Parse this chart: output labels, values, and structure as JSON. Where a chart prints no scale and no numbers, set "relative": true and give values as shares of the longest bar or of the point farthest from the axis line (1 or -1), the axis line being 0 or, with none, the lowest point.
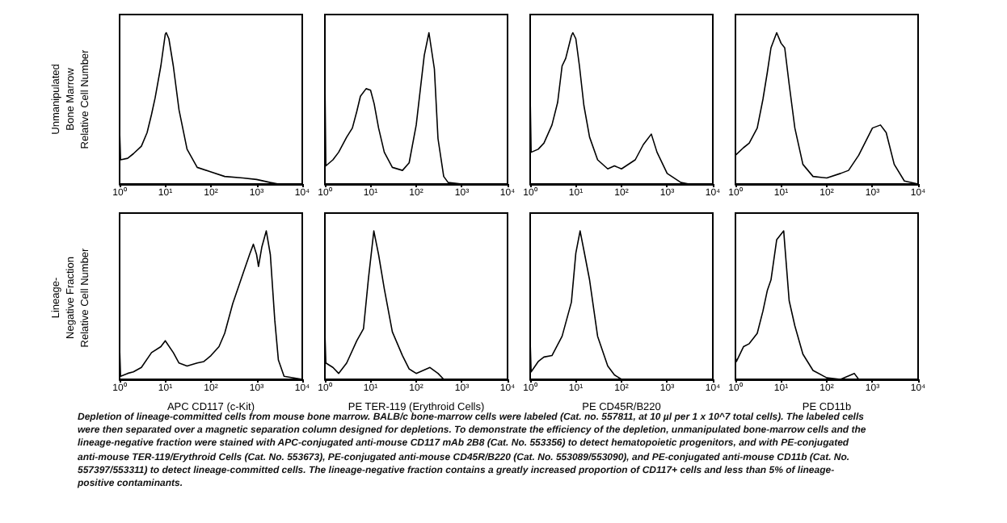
{
  "chart_data": [
    {
      "type": "line",
      "relative": true,
      "log": "x",
      "color": "#000000",
      "marker": "none",
      "ylabel": "Unmanipulated\nBone Marrow\nRelative Cell Number",
      "xlim": [
        1,
        10000
      ],
      "xticks": [
        {
          "value": 1,
          "label": "10⁰"
        },
        {
          "value": 10,
          "label": "10¹"
        },
        {
          "value": 100,
          "label": "10²"
        },
        {
          "value": 1000,
          "label": "10³"
        },
        {
          "value": 10000,
          "label": "10⁴"
        }
      ],
      "x": [
        1,
        1,
        1.05,
        1.5,
        2,
        3,
        4,
        5,
        6,
        8,
        10,
        10.5,
        12,
        15,
        20,
        30,
        50,
        100,
        200,
        500,
        1000,
        2000,
        3000,
        10000
      ],
      "values": [
        0,
        0.36,
        0.16,
        0.17,
        0.2,
        0.25,
        0.34,
        0.46,
        0.57,
        0.78,
        0.99,
        1,
        0.96,
        0.78,
        0.49,
        0.23,
        0.11,
        0.08,
        0.05,
        0.04,
        0.03,
        0.01,
        0,
        0
      ],
      "annotations": [
        "Depletion of lineage-committed cells from mouse bone marrow.",
        "BALB/c bone-marrow cells were labeled (Cat. no. 557811, at 10 µl per 1 x 10^7 total cells). The labeled cells were then separated over a magnetic separation column designed for depletions. To demonstrate the efficiency of the depletion, unmanipulated bone-marrow cells and the lineage-negative fraction were stained with APC-conjugated anti-mouse CD117 mAb 2B8 (Cat. No. 553356) to detect hematopoietic progenitors, and with PE-conjugated anti-mouse TER-119/Erythroid Cells (Cat. No. 553673), PE-conjugated anti-mouse CD45R/B220 (Cat. No. 553089/553090), and PE-conjugated anti-mouse CD11b (Cat. No. 557397/553311) to detect lineage-committed cells. The lineage-negative fraction contains a greatly increased proportion of CD117+ cells and less than 5% of lineage-positive contaminants."
      ]
    },
    {
      "type": "line",
      "relative": true,
      "log": "x",
      "color": "#000000",
      "marker": "none",
      "xlim": [
        1,
        10000
      ],
      "xticks": [
        {
          "value": 1,
          "label": "10⁰"
        },
        {
          "value": 10,
          "label": "10¹"
        },
        {
          "value": 100,
          "label": "10²"
        },
        {
          "value": 1000,
          "label": "10³"
        },
        {
          "value": 10000,
          "label": "10⁴"
        }
      ],
      "x": [
        1,
        1,
        1.05,
        1.5,
        2,
        3,
        4,
        5,
        6,
        8,
        10,
        12,
        15,
        20,
        30,
        50,
        70,
        100,
        150,
        190,
        250,
        300,
        400,
        500,
        1000,
        10000
      ],
      "values": [
        0,
        0.71,
        0.12,
        0.16,
        0.21,
        0.31,
        0.37,
        0.48,
        0.58,
        0.63,
        0.62,
        0.53,
        0.37,
        0.21,
        0.11,
        0.09,
        0.14,
        0.39,
        0.85,
        1,
        0.76,
        0.3,
        0.05,
        0.01,
        0,
        0
      ]
    },
    {
      "type": "line",
      "relative": true,
      "log": "x",
      "color": "#000000",
      "marker": "none",
      "xlim": [
        1,
        10000
      ],
      "xticks": [
        {
          "value": 1,
          "label": "10⁰"
        },
        {
          "value": 10,
          "label": "10¹"
        },
        {
          "value": 100,
          "label": "10²"
        },
        {
          "value": 1000,
          "label": "10³"
        },
        {
          "value": 10000,
          "label": "10⁴"
        }
      ],
      "x": [
        1,
        1,
        1.05,
        1.5,
        2,
        3,
        4,
        5,
        6,
        8,
        8.6,
        10,
        12,
        15,
        20,
        30,
        50,
        70,
        100,
        200,
        300,
        450,
        600,
        1000,
        2000,
        3000,
        10000
      ],
      "values": [
        0,
        0.59,
        0.21,
        0.23,
        0.27,
        0.39,
        0.54,
        0.78,
        0.83,
        0.98,
        1,
        0.96,
        0.78,
        0.52,
        0.31,
        0.16,
        0.1,
        0.12,
        0.1,
        0.16,
        0.26,
        0.33,
        0.21,
        0.07,
        0.01,
        0,
        0
      ]
    },
    {
      "type": "line",
      "relative": true,
      "log": "x",
      "color": "#000000",
      "marker": "none",
      "xlim": [
        1,
        10000
      ],
      "xticks": [
        {
          "value": 1,
          "label": "10⁰"
        },
        {
          "value": 10,
          "label": "10¹"
        },
        {
          "value": 100,
          "label": "10²"
        },
        {
          "value": 1000,
          "label": "10³"
        },
        {
          "value": 10000,
          "label": "10⁴"
        }
      ],
      "x": [
        1,
        1.5,
        2,
        3,
        4,
        5,
        6,
        8,
        10,
        12,
        15,
        20,
        30,
        50,
        100,
        200,
        300,
        500,
        1000,
        1500,
        2000,
        3000,
        5000,
        10000
      ],
      "values": [
        0.19,
        0.24,
        0.27,
        0.37,
        0.56,
        0.74,
        0.9,
        1,
        0.93,
        0.9,
        0.66,
        0.37,
        0.13,
        0.05,
        0.04,
        0.07,
        0.09,
        0.19,
        0.37,
        0.39,
        0.34,
        0.13,
        0.02,
        0
      ]
    },
    {
      "type": "line",
      "relative": true,
      "log": "x",
      "color": "#000000",
      "marker": "none",
      "ylabel": "Lineage-\nNegative Fraction\nRelative Cell Number",
      "xlabel": "APC CD117 (c-Kit)",
      "xlim": [
        1,
        10000
      ],
      "xticks": [
        {
          "value": 1,
          "label": "10⁰"
        },
        {
          "value": 10,
          "label": "10¹"
        },
        {
          "value": 100,
          "label": "10²"
        },
        {
          "value": 1000,
          "label": "10³"
        },
        {
          "value": 10000,
          "label": "10⁴"
        }
      ],
      "x": [
        1,
        1,
        1.05,
        1.5,
        2,
        3,
        5,
        8,
        10,
        15,
        20,
        30,
        50,
        70,
        100,
        150,
        200,
        300,
        500,
        700,
        850,
        1000,
        1100,
        1300,
        1630,
        2000,
        2500,
        3000,
        4000,
        10000
      ],
      "values": [
        0,
        0.22,
        0.02,
        0.04,
        0.05,
        0.08,
        0.18,
        0.22,
        0.26,
        0.18,
        0.11,
        0.09,
        0.11,
        0.12,
        0.16,
        0.22,
        0.31,
        0.51,
        0.71,
        0.84,
        0.91,
        0.84,
        0.76,
        0.89,
        1,
        0.84,
        0.4,
        0.13,
        0.02,
        0
      ]
    },
    {
      "type": "line",
      "relative": true,
      "log": "x",
      "color": "#000000",
      "marker": "none",
      "xlabel": "PE TER-119 (Erythroid Cells)",
      "xlim": [
        1,
        10000
      ],
      "xticks": [
        {
          "value": 1,
          "label": "10⁰"
        },
        {
          "value": 10,
          "label": "10¹"
        },
        {
          "value": 100,
          "label": "10²"
        },
        {
          "value": 1000,
          "label": "10³"
        },
        {
          "value": 10000,
          "label": "10⁴"
        }
      ],
      "x": [
        1,
        1,
        1.05,
        1.5,
        2,
        3,
        5,
        7,
        9,
        11.8,
        15,
        20,
        30,
        50,
        70,
        100,
        200,
        300,
        400,
        10000
      ],
      "values": [
        0,
        0.32,
        0.11,
        0.08,
        0.04,
        0.11,
        0.26,
        0.34,
        0.68,
        1,
        0.84,
        0.61,
        0.32,
        0.16,
        0.07,
        0.04,
        0.08,
        0.04,
        0,
        0
      ]
    },
    {
      "type": "line",
      "relative": true,
      "log": "x",
      "color": "#000000",
      "marker": "none",
      "xlabel": "PE CD45R/B220",
      "xlim": [
        1,
        10000
      ],
      "xticks": [
        {
          "value": 1,
          "label": "10⁰"
        },
        {
          "value": 10,
          "label": "10¹"
        },
        {
          "value": 100,
          "label": "10²"
        },
        {
          "value": 1000,
          "label": "10³"
        },
        {
          "value": 10000,
          "label": "10⁴"
        }
      ],
      "x": [
        1,
        1,
        1.05,
        1.5,
        2,
        3,
        5,
        8,
        10,
        12.4,
        15,
        20,
        30,
        50,
        70,
        100,
        10000
      ],
      "values": [
        0,
        0.26,
        0.05,
        0.12,
        0.15,
        0.16,
        0.29,
        0.52,
        0.85,
        1,
        0.87,
        0.67,
        0.29,
        0.09,
        0.03,
        0,
        0
      ]
    },
    {
      "type": "line",
      "relative": true,
      "log": "x",
      "color": "#000000",
      "marker": "none",
      "xlabel": "PE CD11b",
      "xlim": [
        1,
        10000
      ],
      "xticks": [
        {
          "value": 1,
          "label": "10⁰"
        },
        {
          "value": 10,
          "label": "10¹"
        },
        {
          "value": 100,
          "label": "10²"
        },
        {
          "value": 1000,
          "label": "10³"
        },
        {
          "value": 10000,
          "label": "10⁴"
        }
      ],
      "x": [
        1,
        1,
        1.05,
        1.5,
        2,
        3,
        4,
        5,
        6,
        8,
        11.4,
        12,
        15,
        20,
        30,
        50,
        100,
        200,
        400,
        500,
        10000
      ],
      "values": [
        0,
        0.15,
        0.12,
        0.22,
        0.24,
        0.31,
        0.46,
        0.6,
        0.67,
        0.94,
        1,
        0.91,
        0.53,
        0.36,
        0.17,
        0.06,
        0.01,
        0,
        0.04,
        0,
        0
      ]
    }
  ]
}
